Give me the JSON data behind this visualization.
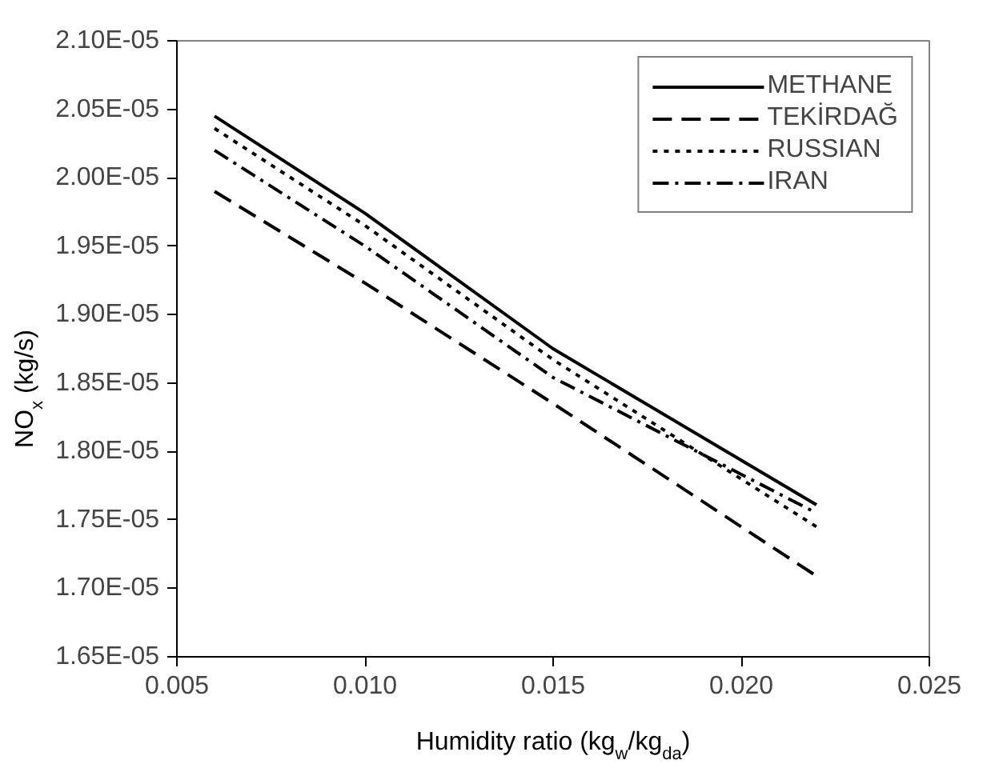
{
  "chart_data": {
    "type": "line",
    "xlabel": "Humidity ratio (kg$_{w}$/kg$_{da}$)",
    "ylabel": "NO$_{x}$ (kg/s)",
    "x": [
      0.006,
      0.01,
      0.015,
      0.022
    ],
    "series": [
      {
        "name": "METHANE",
        "color": "#000000",
        "line_style": "solid",
        "values": [
          2.045e-05,
          1.974e-05,
          1.875e-05,
          1.761e-05
        ]
      },
      {
        "name": "TEKİRDAĞ",
        "color": "#000000",
        "line_style": "dashed",
        "values": [
          1.99e-05,
          1.923e-05,
          1.835e-05,
          1.709e-05
        ]
      },
      {
        "name": "RUSSIAN",
        "color": "#000000",
        "line_style": "dotted",
        "values": [
          2.036e-05,
          1.965e-05,
          1.867e-05,
          1.745e-05
        ]
      },
      {
        "name": "IRAN",
        "color": "#000000",
        "line_style": "dashdot",
        "values": [
          2.02e-05,
          1.95e-05,
          1.854e-05,
          1.755e-05
        ]
      }
    ],
    "xlim": [
      0.005,
      0.025
    ],
    "xticks": [
      {
        "value": 0.005,
        "label": "0.005"
      },
      {
        "value": 0.01,
        "label": "0.010"
      },
      {
        "value": 0.015,
        "label": "0.015"
      },
      {
        "value": 0.02,
        "label": "0.020"
      },
      {
        "value": 0.025,
        "label": "0.025"
      }
    ],
    "ylim": [
      1.65e-05,
      2.1e-05
    ],
    "yticks": [
      {
        "value": 1.65e-05,
        "label": "1.65E-05"
      },
      {
        "value": 1.7e-05,
        "label": "1.70E-05"
      },
      {
        "value": 1.75e-05,
        "label": "1.75E-05"
      },
      {
        "value": 1.8e-05,
        "label": "1.80E-05"
      },
      {
        "value": 1.85e-05,
        "label": "1.85E-05"
      },
      {
        "value": 1.9e-05,
        "label": "1.90E-05"
      },
      {
        "value": 1.95e-05,
        "label": "1.95E-05"
      },
      {
        "value": 2e-05,
        "label": "2.00E-05"
      },
      {
        "value": 2.05e-05,
        "label": "2.05E-05"
      },
      {
        "value": 2.1e-05,
        "label": "2.10E-05"
      }
    ],
    "grid": false,
    "legend": "top right",
    "marker": "none"
  }
}
